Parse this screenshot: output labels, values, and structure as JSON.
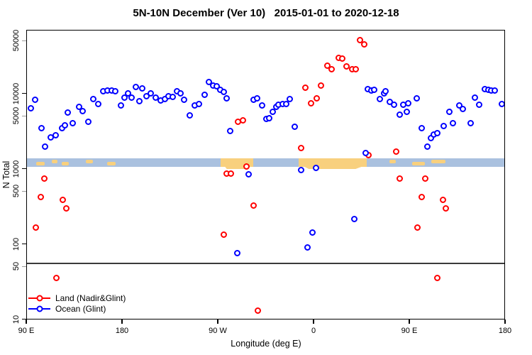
{
  "title": "5N-10N December (Ver 10)   2015-01-01 to 2020-12-18",
  "axes": {
    "y_label": "N Total",
    "x_label": "Longitude (deg E)"
  },
  "legend": {
    "items": [
      {
        "label": "Land (Nadir&Glint)",
        "color": "#FF0000"
      },
      {
        "label": "Ocean (Glint)",
        "color": "#0000FF"
      }
    ]
  },
  "colors": {
    "land": "#FF0000",
    "ocean": "#0000FF",
    "band": "#AAC1DF",
    "band_highlight": "#F8D07E",
    "threshold_line": "#3a3a3a"
  },
  "chart_data": {
    "type": "scatter",
    "title": "5N-10N December (Ver 10)   2015-01-01 to 2020-12-18",
    "xlabel": "Longitude (deg E)",
    "ylabel": "N Total",
    "y_scale": "log",
    "y_ticks": [
      10,
      50,
      100,
      500,
      1000,
      5000,
      10000,
      50000
    ],
    "ylim": [
      9,
      68000
    ],
    "x_axis_span_deg": 450,
    "x_ticks": [
      {
        "pos": 0,
        "label": "90 E"
      },
      {
        "pos": 90,
        "label": "180"
      },
      {
        "pos": 180,
        "label": "90 W"
      },
      {
        "pos": 270,
        "label": "0"
      },
      {
        "pos": 360,
        "label": "90 E"
      },
      {
        "pos": 450,
        "label": "180"
      }
    ],
    "reference_band": {
      "n_range": [
        1080,
        1390
      ]
    },
    "band_highlights_deg": [
      {
        "from": 182,
        "to": 212.7,
        "tail": [
          185.3,
          208.7
        ]
      },
      {
        "from": 255.3,
        "to": 319.3,
        "tail": [
          258.7,
          316
        ]
      }
    ],
    "band_speckles_deg": [
      [
        8.7,
        16.7
      ],
      [
        23.3,
        28.7
      ],
      [
        32.7,
        39.3
      ],
      [
        55.3,
        62
      ],
      [
        75.3,
        83.3
      ],
      [
        340.7,
        346.7
      ],
      [
        362,
        374
      ],
      [
        380,
        393.3
      ]
    ],
    "threshold_line_n": 57,
    "series": [
      {
        "name": "Land (Nadir&Glint)",
        "color": "#FF0000",
        "points": [
          [
            16.7,
            750
          ],
          [
            13.3,
            420
          ],
          [
            33.8,
            390
          ],
          [
            37.1,
            300
          ],
          [
            8.9,
            165
          ],
          [
            27.8,
            36
          ],
          [
            198.7,
            4200
          ],
          [
            203,
            4400
          ],
          [
            206.4,
            1070
          ],
          [
            188,
            860
          ],
          [
            192,
            860
          ],
          [
            213.5,
            330
          ],
          [
            185.3,
            134
          ],
          [
            217.3,
            13
          ],
          [
            313.1,
            52000
          ],
          [
            317.1,
            45000
          ],
          [
            293.1,
            30000
          ],
          [
            296.9,
            29000
          ],
          [
            282.7,
            23500
          ],
          [
            286.4,
            21000
          ],
          [
            300.9,
            23000
          ],
          [
            306,
            21000
          ],
          [
            309.3,
            21000
          ],
          [
            262,
            12000
          ],
          [
            276.5,
            12700
          ],
          [
            267.5,
            7450
          ],
          [
            272.7,
            8700
          ],
          [
            258.2,
            1900
          ],
          [
            321.3,
            1520
          ],
          [
            347.1,
            1700
          ],
          [
            350.5,
            750
          ],
          [
            374.9,
            750
          ],
          [
            371.3,
            420
          ],
          [
            391.5,
            390
          ],
          [
            394.2,
            300
          ],
          [
            367.1,
            165
          ],
          [
            386,
            36
          ]
        ]
      },
      {
        "name": "Ocean (Glint)",
        "color": "#0000FF",
        "points": [
          [
            3.8,
            6450
          ],
          [
            8.2,
            8400
          ],
          [
            14.2,
            3500
          ],
          [
            17.5,
            2000
          ],
          [
            22.7,
            2650
          ],
          [
            27.1,
            2800
          ],
          [
            33.3,
            3500
          ],
          [
            36.2,
            3800
          ],
          [
            38.7,
            5600
          ],
          [
            43.5,
            4100
          ],
          [
            49.3,
            6700
          ],
          [
            52.7,
            5900
          ],
          [
            58.2,
            4200
          ],
          [
            62.7,
            8500
          ],
          [
            67.1,
            7300
          ],
          [
            72,
            10700
          ],
          [
            76,
            11000
          ],
          [
            80,
            11000
          ],
          [
            83,
            10700
          ],
          [
            88.5,
            7000
          ],
          [
            92.2,
            8900
          ],
          [
            95.5,
            10100
          ],
          [
            98.5,
            8900
          ],
          [
            102.7,
            12200
          ],
          [
            106.2,
            8000
          ],
          [
            108.9,
            11700
          ],
          [
            112.5,
            9300
          ],
          [
            116.5,
            10100
          ],
          [
            121.3,
            8900
          ],
          [
            125.8,
            8150
          ],
          [
            129.8,
            8500
          ],
          [
            133.1,
            9250
          ],
          [
            137.5,
            9050
          ],
          [
            141.5,
            10700
          ],
          [
            144.9,
            10150
          ],
          [
            148.2,
            8300
          ],
          [
            153.1,
            5100
          ],
          [
            158,
            7050
          ],
          [
            162,
            7300
          ],
          [
            167.5,
            9700
          ],
          [
            171.5,
            14300
          ],
          [
            175.3,
            12800
          ],
          [
            178.7,
            12600
          ],
          [
            182,
            11300
          ],
          [
            185.3,
            10500
          ],
          [
            188.2,
            8600
          ],
          [
            191.3,
            3200
          ],
          [
            213.1,
            8300
          ],
          [
            216.9,
            8750
          ],
          [
            221.5,
            7050
          ],
          [
            225,
            4600
          ],
          [
            228.2,
            4700
          ],
          [
            208.7,
            850
          ],
          [
            198,
            77
          ],
          [
            231.5,
            5700
          ],
          [
            234.9,
            6700
          ],
          [
            236.9,
            7100
          ],
          [
            240.5,
            7300
          ],
          [
            243.8,
            7300
          ],
          [
            247.5,
            8500
          ],
          [
            252,
            3650
          ],
          [
            320.5,
            11500
          ],
          [
            323.8,
            11000
          ],
          [
            326.9,
            11300
          ],
          [
            332,
            8450
          ],
          [
            335.8,
            10150
          ],
          [
            318.7,
            1630
          ],
          [
            258,
            970
          ],
          [
            272,
            1030
          ],
          [
            308.2,
            215
          ],
          [
            268.7,
            144
          ],
          [
            264.2,
            90
          ],
          [
            337.1,
            10700
          ],
          [
            341.5,
            7800
          ],
          [
            345.3,
            7200
          ],
          [
            350.9,
            5300
          ],
          [
            354.2,
            7100
          ],
          [
            358.5,
            7400
          ],
          [
            357.1,
            5700
          ],
          [
            366.5,
            8600
          ],
          [
            371.5,
            3500
          ],
          [
            376.5,
            2000
          ],
          [
            379.8,
            2600
          ],
          [
            382.7,
            2850
          ],
          [
            386,
            3000
          ],
          [
            392,
            3750
          ],
          [
            397.1,
            5700
          ],
          [
            400.9,
            4100
          ],
          [
            406.9,
            7000
          ],
          [
            409.8,
            6250
          ],
          [
            417.1,
            4100
          ],
          [
            421.5,
            8800
          ],
          [
            425.3,
            7100
          ],
          [
            430.5,
            11500
          ],
          [
            433.8,
            11300
          ],
          [
            436.5,
            11000
          ],
          [
            439.8,
            11000
          ],
          [
            446.5,
            7300
          ]
        ]
      }
    ]
  }
}
